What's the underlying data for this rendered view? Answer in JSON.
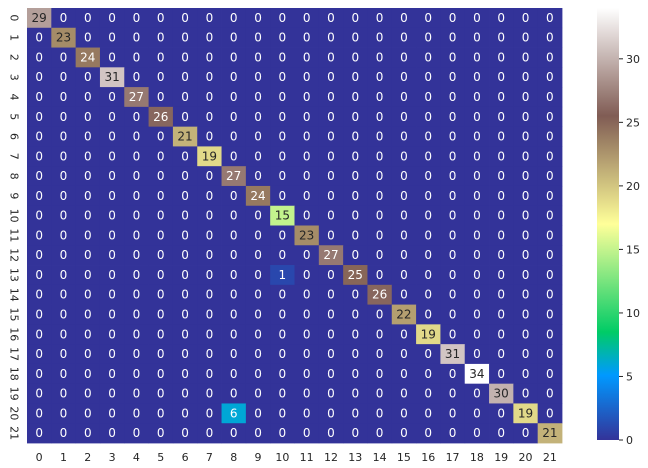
{
  "chart_data": {
    "type": "heatmap",
    "title": "",
    "xlabel": "",
    "ylabel": "",
    "x_tick_labels": [
      "0",
      "1",
      "2",
      "3",
      "4",
      "5",
      "6",
      "7",
      "8",
      "9",
      "10",
      "11",
      "12",
      "13",
      "14",
      "15",
      "16",
      "17",
      "18",
      "19",
      "20",
      "21"
    ],
    "y_tick_labels": [
      "0",
      "1",
      "2",
      "3",
      "4",
      "5",
      "6",
      "7",
      "8",
      "9",
      "10",
      "11",
      "12",
      "13",
      "14",
      "15",
      "16",
      "17",
      "18",
      "19",
      "20",
      "21"
    ],
    "colormap": "terrain",
    "vmin": 0,
    "vmax": 34,
    "colorbar_ticks": [
      "0",
      "5",
      "10",
      "15",
      "20",
      "25",
      "30"
    ],
    "colorbar_tick_values": [
      0,
      5,
      10,
      15,
      20,
      25,
      30
    ],
    "matrix": [
      [
        29,
        0,
        0,
        0,
        0,
        0,
        0,
        0,
        0,
        0,
        0,
        0,
        0,
        0,
        0,
        0,
        0,
        0,
        0,
        0,
        0,
        0
      ],
      [
        0,
        23,
        0,
        0,
        0,
        0,
        0,
        0,
        0,
        0,
        0,
        0,
        0,
        0,
        0,
        0,
        0,
        0,
        0,
        0,
        0,
        0
      ],
      [
        0,
        0,
        24,
        0,
        0,
        0,
        0,
        0,
        0,
        0,
        0,
        0,
        0,
        0,
        0,
        0,
        0,
        0,
        0,
        0,
        0,
        0
      ],
      [
        0,
        0,
        0,
        31,
        0,
        0,
        0,
        0,
        0,
        0,
        0,
        0,
        0,
        0,
        0,
        0,
        0,
        0,
        0,
        0,
        0,
        0
      ],
      [
        0,
        0,
        0,
        0,
        27,
        0,
        0,
        0,
        0,
        0,
        0,
        0,
        0,
        0,
        0,
        0,
        0,
        0,
        0,
        0,
        0,
        0
      ],
      [
        0,
        0,
        0,
        0,
        0,
        26,
        0,
        0,
        0,
        0,
        0,
        0,
        0,
        0,
        0,
        0,
        0,
        0,
        0,
        0,
        0,
        0
      ],
      [
        0,
        0,
        0,
        0,
        0,
        0,
        21,
        0,
        0,
        0,
        0,
        0,
        0,
        0,
        0,
        0,
        0,
        0,
        0,
        0,
        0,
        0
      ],
      [
        0,
        0,
        0,
        0,
        0,
        0,
        0,
        19,
        0,
        0,
        0,
        0,
        0,
        0,
        0,
        0,
        0,
        0,
        0,
        0,
        0,
        0
      ],
      [
        0,
        0,
        0,
        0,
        0,
        0,
        0,
        0,
        27,
        0,
        0,
        0,
        0,
        0,
        0,
        0,
        0,
        0,
        0,
        0,
        0,
        0
      ],
      [
        0,
        0,
        0,
        0,
        0,
        0,
        0,
        0,
        0,
        24,
        0,
        0,
        0,
        0,
        0,
        0,
        0,
        0,
        0,
        0,
        0,
        0
      ],
      [
        0,
        0,
        0,
        0,
        0,
        0,
        0,
        0,
        0,
        0,
        15,
        0,
        0,
        0,
        0,
        0,
        0,
        0,
        0,
        0,
        0,
        0
      ],
      [
        0,
        0,
        0,
        0,
        0,
        0,
        0,
        0,
        0,
        0,
        0,
        23,
        0,
        0,
        0,
        0,
        0,
        0,
        0,
        0,
        0,
        0
      ],
      [
        0,
        0,
        0,
        0,
        0,
        0,
        0,
        0,
        0,
        0,
        0,
        0,
        27,
        0,
        0,
        0,
        0,
        0,
        0,
        0,
        0,
        0
      ],
      [
        0,
        0,
        0,
        0,
        0,
        0,
        0,
        0,
        0,
        0,
        1,
        0,
        0,
        25,
        0,
        0,
        0,
        0,
        0,
        0,
        0,
        0
      ],
      [
        0,
        0,
        0,
        0,
        0,
        0,
        0,
        0,
        0,
        0,
        0,
        0,
        0,
        0,
        26,
        0,
        0,
        0,
        0,
        0,
        0,
        0
      ],
      [
        0,
        0,
        0,
        0,
        0,
        0,
        0,
        0,
        0,
        0,
        0,
        0,
        0,
        0,
        0,
        22,
        0,
        0,
        0,
        0,
        0,
        0
      ],
      [
        0,
        0,
        0,
        0,
        0,
        0,
        0,
        0,
        0,
        0,
        0,
        0,
        0,
        0,
        0,
        0,
        19,
        0,
        0,
        0,
        0,
        0
      ],
      [
        0,
        0,
        0,
        0,
        0,
        0,
        0,
        0,
        0,
        0,
        0,
        0,
        0,
        0,
        0,
        0,
        0,
        31,
        0,
        0,
        0,
        0
      ],
      [
        0,
        0,
        0,
        0,
        0,
        0,
        0,
        0,
        0,
        0,
        0,
        0,
        0,
        0,
        0,
        0,
        0,
        0,
        34,
        0,
        0,
        0
      ],
      [
        0,
        0,
        0,
        0,
        0,
        0,
        0,
        0,
        0,
        0,
        0,
        0,
        0,
        0,
        0,
        0,
        0,
        0,
        0,
        30,
        0,
        0
      ],
      [
        0,
        0,
        0,
        0,
        0,
        0,
        0,
        0,
        6,
        0,
        0,
        0,
        0,
        0,
        0,
        0,
        0,
        0,
        0,
        0,
        19,
        0
      ],
      [
        0,
        0,
        0,
        0,
        0,
        0,
        0,
        0,
        0,
        0,
        0,
        0,
        0,
        0,
        0,
        0,
        0,
        0,
        0,
        0,
        0,
        21
      ]
    ],
    "grid": false,
    "annotations": true,
    "text_color_dark": "#262626",
    "text_color_light": "#ffffff",
    "axis_text_color": "#262626"
  }
}
